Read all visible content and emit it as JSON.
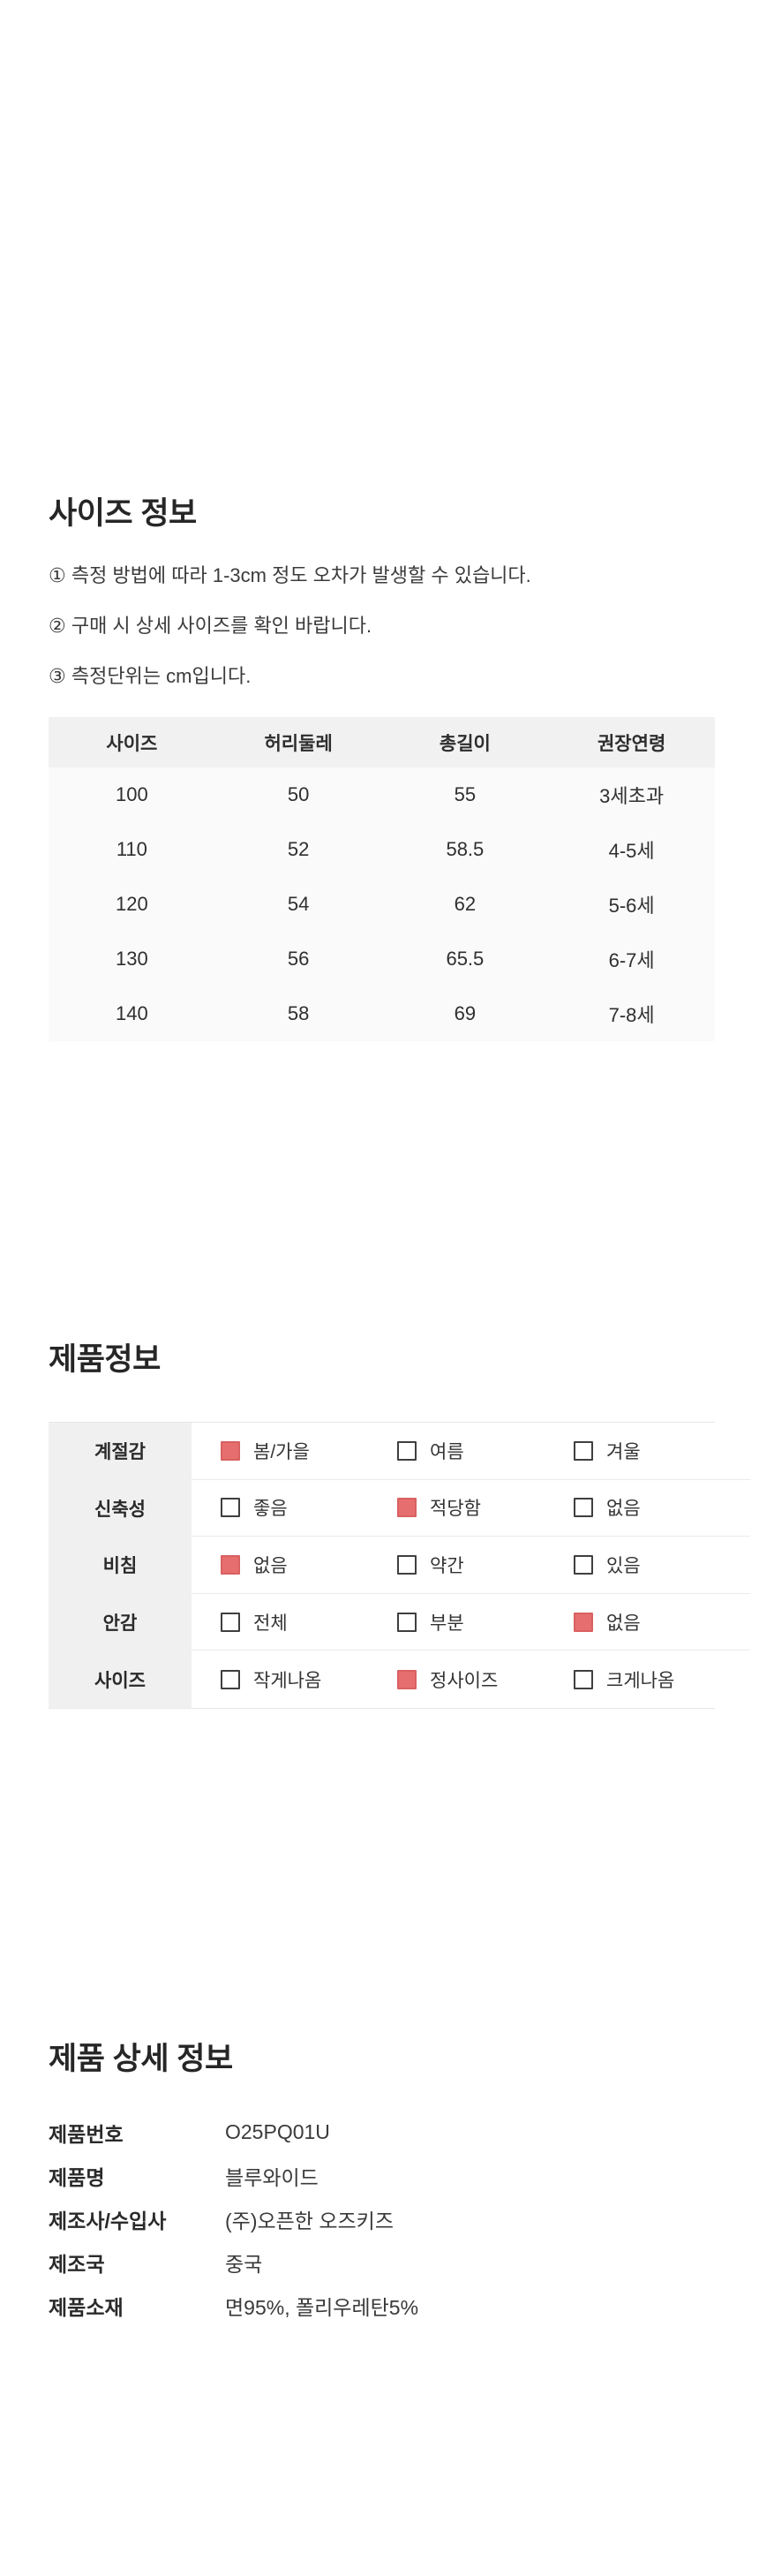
{
  "colors": {
    "accent_red": "#e66e6e",
    "accent_red_border": "#d96060",
    "size_table_header_bg": "#f1f1f1",
    "size_table_body_bg": "#fafafa",
    "info_label_col_bg": "#f0f0f0",
    "divider": "#ebebeb",
    "text": "#333333"
  },
  "size_section": {
    "title": "사이즈 정보",
    "notes": [
      "① 측정 방법에 따라 1-3cm 정도 오차가 발생할 수 있습니다.",
      "② 구매 시 상세 사이즈를 확인 바랍니다.",
      "③ 측정단위는 cm입니다."
    ],
    "table": {
      "headers": [
        "사이즈",
        "허리둘레",
        "총길이",
        "권장연령"
      ],
      "rows": [
        [
          "100",
          "50",
          "55",
          "3세초과"
        ],
        [
          "110",
          "52",
          "58.5",
          "4-5세"
        ],
        [
          "120",
          "54",
          "62",
          "5-6세"
        ],
        [
          "130",
          "56",
          "65.5",
          "6-7세"
        ],
        [
          "140",
          "58",
          "69",
          "7-8세"
        ]
      ]
    }
  },
  "product_info_section": {
    "title": "제품정보",
    "rows": [
      {
        "label": "계절감",
        "options": [
          {
            "text": "봄/가을",
            "checked": true
          },
          {
            "text": "여름",
            "checked": false
          },
          {
            "text": "겨울",
            "checked": false
          }
        ]
      },
      {
        "label": "신축성",
        "options": [
          {
            "text": "좋음",
            "checked": false
          },
          {
            "text": "적당함",
            "checked": true
          },
          {
            "text": "없음",
            "checked": false
          }
        ]
      },
      {
        "label": "비침",
        "options": [
          {
            "text": "없음",
            "checked": true
          },
          {
            "text": "약간",
            "checked": false
          },
          {
            "text": "있음",
            "checked": false
          }
        ]
      },
      {
        "label": "안감",
        "options": [
          {
            "text": "전체",
            "checked": false
          },
          {
            "text": "부분",
            "checked": false
          },
          {
            "text": "없음",
            "checked": true
          }
        ]
      },
      {
        "label": "사이즈",
        "options": [
          {
            "text": "작게나옴",
            "checked": false
          },
          {
            "text": "정사이즈",
            "checked": true
          },
          {
            "text": "크게나옴",
            "checked": false
          }
        ]
      }
    ]
  },
  "detail_section": {
    "title": "제품 상세 정보",
    "rows": [
      {
        "label": "제품번호",
        "value": "O25PQ01U"
      },
      {
        "label": "제품명",
        "value": "블루와이드"
      },
      {
        "label": "제조사/수입사",
        "value": "(주)오픈한 오즈키즈"
      },
      {
        "label": "제조국",
        "value": "중국"
      },
      {
        "label": "제품소재",
        "value": "면95%, 폴리우레탄5%"
      }
    ]
  }
}
